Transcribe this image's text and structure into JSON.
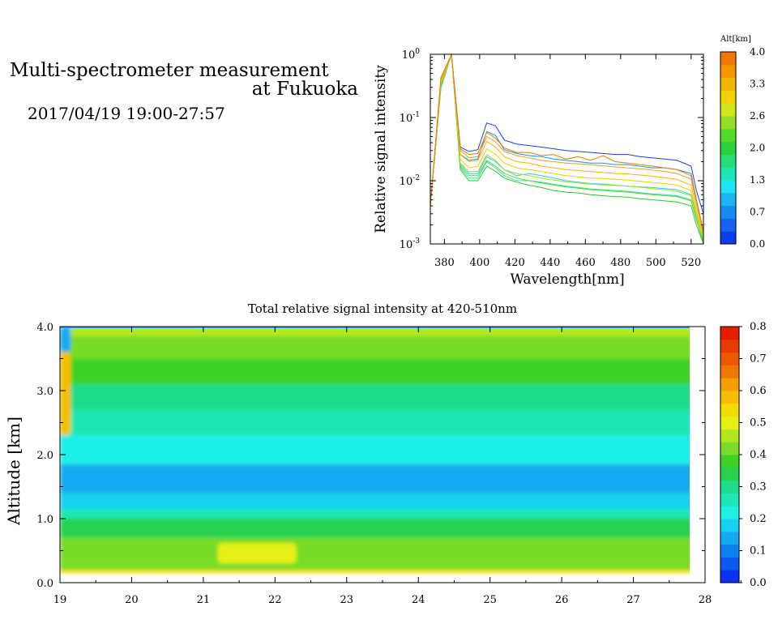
{
  "header": {
    "title_line1": "Multi-spectrometer measurement",
    "title_line2": "at Fukuoka",
    "date_range": "2017/04/19 19:00-27:57"
  },
  "chart_data": [
    {
      "type": "line",
      "ylabel": "Relative signal intensity",
      "xlabel": "Wavelength[nm]",
      "xlim": [
        372,
        527
      ],
      "ylim": [
        0.001,
        1
      ],
      "yscale": "log",
      "x_ticks": [
        380,
        400,
        420,
        440,
        460,
        480,
        500,
        520
      ],
      "y_ticks": [
        {
          "value": 0.001,
          "base": "10",
          "exp": "-3"
        },
        {
          "value": 0.01,
          "base": "10",
          "exp": "-2"
        },
        {
          "value": 0.1,
          "base": "10",
          "exp": "-1"
        },
        {
          "value": 1,
          "base": "10",
          "exp": "0"
        }
      ],
      "x": [
        372,
        378,
        384,
        389,
        394,
        399,
        404,
        409,
        414,
        421,
        428,
        435,
        442,
        449,
        456,
        463,
        470,
        477,
        484,
        491,
        498,
        505,
        512,
        520,
        523,
        527
      ],
      "series": [
        {
          "altitude_km": 0.1,
          "color": "#1446e8",
          "values": [
            0.004,
            0.33,
            1.0,
            0.034,
            0.029,
            0.031,
            0.082,
            0.074,
            0.044,
            0.038,
            0.036,
            0.034,
            0.032,
            0.03,
            0.029,
            0.028,
            0.027,
            0.026,
            0.026,
            0.024,
            0.023,
            0.022,
            0.021,
            0.017,
            0.007,
            0.003
          ]
        },
        {
          "altitude_km": 0.5,
          "color": "#1496e6",
          "values": [
            0.004,
            0.3,
            1.0,
            0.026,
            0.021,
            0.022,
            0.06,
            0.052,
            0.031,
            0.027,
            0.025,
            0.024,
            0.022,
            0.021,
            0.02,
            0.019,
            0.019,
            0.018,
            0.018,
            0.017,
            0.016,
            0.016,
            0.015,
            0.013,
            0.005,
            0.0015
          ]
        },
        {
          "altitude_km": 1.0,
          "color": "#20d2e6",
          "values": [
            0.004,
            0.29,
            1.0,
            0.018,
            0.013,
            0.013,
            0.024,
            0.02,
            0.015,
            0.012,
            0.013,
            0.012,
            0.011,
            0.01,
            0.0095,
            0.009,
            0.0088,
            0.0085,
            0.0082,
            0.008,
            0.0078,
            0.0075,
            0.0072,
            0.006,
            0.003,
            0.0012
          ]
        },
        {
          "altitude_km": 1.5,
          "color": "#22e6a8",
          "values": [
            0.004,
            0.3,
            1.0,
            0.016,
            0.011,
            0.011,
            0.02,
            0.016,
            0.012,
            0.01,
            0.01,
            0.0095,
            0.0088,
            0.0082,
            0.0078,
            0.0074,
            0.0072,
            0.007,
            0.0068,
            0.0065,
            0.0062,
            0.006,
            0.0058,
            0.005,
            0.0025,
            0.001
          ]
        },
        {
          "altitude_km": 2.0,
          "color": "#28c828",
          "values": [
            0.004,
            0.31,
            1.0,
            0.015,
            0.01,
            0.01,
            0.017,
            0.014,
            0.011,
            0.0095,
            0.0085,
            0.0078,
            0.007,
            0.0066,
            0.0064,
            0.006,
            0.0058,
            0.0056,
            0.0055,
            0.0052,
            0.005,
            0.0048,
            0.0046,
            0.004,
            0.002,
            0.001
          ]
        },
        {
          "altitude_km": 2.3,
          "color": "#66d22a",
          "values": [
            0.004,
            0.32,
            1.0,
            0.017,
            0.012,
            0.012,
            0.021,
            0.017,
            0.013,
            0.011,
            0.01,
            0.0092,
            0.0085,
            0.008,
            0.0076,
            0.0072,
            0.007,
            0.0068,
            0.0066,
            0.0063,
            0.006,
            0.0058,
            0.0056,
            0.0048,
            0.0024,
            0.0011
          ]
        },
        {
          "altitude_km": 2.6,
          "color": "#a8dc28",
          "values": [
            0.004,
            0.33,
            1.0,
            0.019,
            0.014,
            0.014,
            0.026,
            0.021,
            0.015,
            0.013,
            0.012,
            0.011,
            0.0102,
            0.0096,
            0.0092,
            0.0088,
            0.0086,
            0.0084,
            0.0082,
            0.0079,
            0.0075,
            0.0072,
            0.0068,
            0.0058,
            0.0028,
            0.0012
          ]
        },
        {
          "altitude_km": 2.9,
          "color": "#e6d200",
          "values": [
            0.004,
            0.36,
            1.0,
            0.022,
            0.016,
            0.017,
            0.032,
            0.026,
            0.019,
            0.016,
            0.015,
            0.014,
            0.013,
            0.012,
            0.0115,
            0.011,
            0.0108,
            0.0105,
            0.0102,
            0.0098,
            0.0094,
            0.009,
            0.0085,
            0.007,
            0.0032,
            0.0013
          ]
        },
        {
          "altitude_km": 3.2,
          "color": "#f5b400",
          "values": [
            0.004,
            0.38,
            1.0,
            0.026,
            0.02,
            0.021,
            0.042,
            0.034,
            0.024,
            0.02,
            0.019,
            0.017,
            0.016,
            0.015,
            0.0145,
            0.014,
            0.0135,
            0.013,
            0.0128,
            0.0123,
            0.0118,
            0.0112,
            0.0105,
            0.0085,
            0.0038,
            0.0014
          ]
        },
        {
          "altitude_km": 3.5,
          "color": "#f59a28",
          "values": [
            0.004,
            0.4,
            1.0,
            0.03,
            0.023,
            0.024,
            0.05,
            0.041,
            0.029,
            0.025,
            0.023,
            0.021,
            0.02,
            0.019,
            0.0185,
            0.018,
            0.0172,
            0.0165,
            0.016,
            0.0154,
            0.0148,
            0.014,
            0.013,
            0.0105,
            0.0045,
            0.0015
          ]
        },
        {
          "altitude_km": 3.8,
          "color": "#f07800",
          "values": [
            0.004,
            0.43,
            1.0,
            0.032,
            0.026,
            0.027,
            0.058,
            0.047,
            0.033,
            0.028,
            0.028,
            0.025,
            0.026,
            0.022,
            0.024,
            0.021,
            0.025,
            0.02,
            0.019,
            0.018,
            0.017,
            0.016,
            0.015,
            0.012,
            0.005,
            0.0016
          ]
        }
      ],
      "colorbar": {
        "title": "Alt[km]",
        "labels": [
          "0.0",
          "0.7",
          "1.3",
          "2.0",
          "2.6",
          "3.3",
          "4.0"
        ],
        "colors": [
          "#0d3cf0",
          "#1464f0",
          "#148cf0",
          "#1eb4f0",
          "#1ee6f0",
          "#1ee6b4",
          "#28dc78",
          "#28d23c",
          "#50dc28",
          "#96dc28",
          "#d2e61e",
          "#f0d200",
          "#f5b400",
          "#f59600",
          "#f07800"
        ]
      }
    },
    {
      "type": "heatmap",
      "title": "Total relative signal intensity at 420-510nm",
      "xlabel": "",
      "ylabel": "Altitude [km]",
      "xlim": [
        19,
        28
      ],
      "ylim": [
        0,
        4
      ],
      "x_ticks": [
        "19",
        "20",
        "21",
        "22",
        "23",
        "24",
        "25",
        "26",
        "27",
        "28"
      ],
      "y_ticks": [
        "0.0",
        "1.0",
        "2.0",
        "3.0",
        "4.0"
      ],
      "data_extent_x": [
        19,
        27.95
      ],
      "bands": [
        {
          "from_km": 0.15,
          "to_km": 0.2,
          "value": 0.55
        },
        {
          "from_km": 0.2,
          "to_km": 0.3,
          "value": 0.42
        },
        {
          "from_km": 0.3,
          "to_km": 0.7,
          "value": 0.4
        },
        {
          "from_km": 0.7,
          "to_km": 1.0,
          "value": 0.34
        },
        {
          "from_km": 1.0,
          "to_km": 1.15,
          "value": 0.26
        },
        {
          "from_km": 1.15,
          "to_km": 1.4,
          "value": 0.19
        },
        {
          "from_km": 1.4,
          "to_km": 1.85,
          "value": 0.15
        },
        {
          "from_km": 1.85,
          "to_km": 2.3,
          "value": 0.2
        },
        {
          "from_km": 2.3,
          "to_km": 2.7,
          "value": 0.25
        },
        {
          "from_km": 2.7,
          "to_km": 3.1,
          "value": 0.31
        },
        {
          "from_km": 3.1,
          "to_km": 3.5,
          "value": 0.36
        },
        {
          "from_km": 3.5,
          "to_km": 3.85,
          "value": 0.4
        },
        {
          "from_km": 3.85,
          "to_km": 4.0,
          "value": 0.45
        }
      ],
      "features": [
        {
          "x0": 21.2,
          "x1": 22.3,
          "alt0": 0.3,
          "alt1": 0.62,
          "value": 0.5
        },
        {
          "x0": 19.0,
          "x1": 19.15,
          "alt0": 2.3,
          "alt1": 3.6,
          "value": 0.6
        },
        {
          "x0": 19.0,
          "x1": 19.15,
          "alt0": 3.6,
          "alt1": 4.0,
          "value": 0.12
        }
      ],
      "colorbar": {
        "labels": [
          "0.0",
          "0.1",
          "0.2",
          "0.3",
          "0.4",
          "0.5",
          "0.6",
          "0.7",
          "0.8"
        ],
        "colors": [
          "#0a32f0",
          "#0a5af0",
          "#0a82f0",
          "#14aaf0",
          "#14d2f0",
          "#1ef0e6",
          "#1ee6b4",
          "#1edc8c",
          "#28d250",
          "#3cd228",
          "#78dc28",
          "#b4e61e",
          "#e6f014",
          "#f5dc00",
          "#f5be00",
          "#f5a000",
          "#f07800",
          "#eb5a00",
          "#e63c00",
          "#e61e00"
        ]
      }
    }
  ]
}
